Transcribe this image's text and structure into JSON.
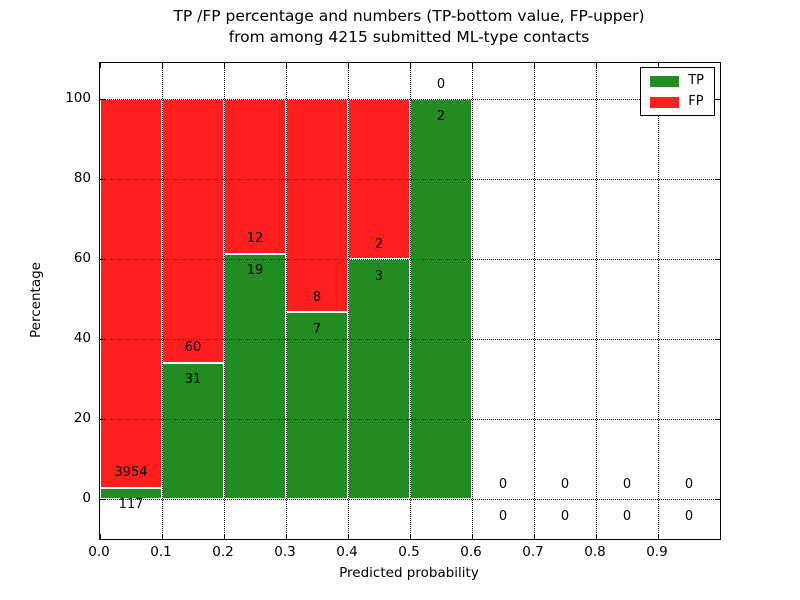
{
  "chart_data": {
    "type": "bar",
    "variant": "stacked-percentage-histogram",
    "title_lines": [
      "TP /FP percentage and numbers (TP-bottom value, FP-upper)",
      "from among 4215 submitted ML-type contacts"
    ],
    "xlabel": "Predicted probability",
    "ylabel": "Percentage",
    "xlim": [
      0.0,
      1.0
    ],
    "ylim": [
      -10,
      109
    ],
    "xticks": [
      0.0,
      0.1,
      0.2,
      0.3,
      0.4,
      0.5,
      0.6,
      0.7,
      0.8,
      0.9
    ],
    "xtick_labels": [
      "0.0",
      "0.1",
      "0.2",
      "0.3",
      "0.4",
      "0.5",
      "0.6",
      "0.7",
      "0.8",
      "0.9"
    ],
    "yticks": [
      0,
      20,
      40,
      60,
      80,
      100
    ],
    "ytick_labels": [
      "0",
      "20",
      "40",
      "60",
      "80",
      "100"
    ],
    "grid": "dotted both axes",
    "total_contacts": 4215,
    "legend": [
      {
        "label": "TP",
        "color": "#228B22"
      },
      {
        "label": "FP",
        "color": "#FF1F1F"
      }
    ],
    "colors": {
      "tp": "#228B22",
      "fp": "#FF1F1F",
      "bar_edge": "#FFFFFF"
    },
    "bins": [
      {
        "x_start": 0.0,
        "x_end": 0.1,
        "tp": 117,
        "fp": 3954
      },
      {
        "x_start": 0.1,
        "x_end": 0.2,
        "tp": 31,
        "fp": 60
      },
      {
        "x_start": 0.2,
        "x_end": 0.3,
        "tp": 19,
        "fp": 12
      },
      {
        "x_start": 0.3,
        "x_end": 0.4,
        "tp": 7,
        "fp": 8
      },
      {
        "x_start": 0.4,
        "x_end": 0.5,
        "tp": 3,
        "fp": 2
      },
      {
        "x_start": 0.5,
        "x_end": 0.6,
        "tp": 2,
        "fp": 0
      },
      {
        "x_start": 0.6,
        "x_end": 0.7,
        "tp": 0,
        "fp": 0
      },
      {
        "x_start": 0.7,
        "x_end": 0.8,
        "tp": 0,
        "fp": 0
      },
      {
        "x_start": 0.8,
        "x_end": 0.9,
        "tp": 0,
        "fp": 0
      },
      {
        "x_start": 0.9,
        "x_end": 1.0,
        "tp": 0,
        "fp": 0
      }
    ]
  }
}
